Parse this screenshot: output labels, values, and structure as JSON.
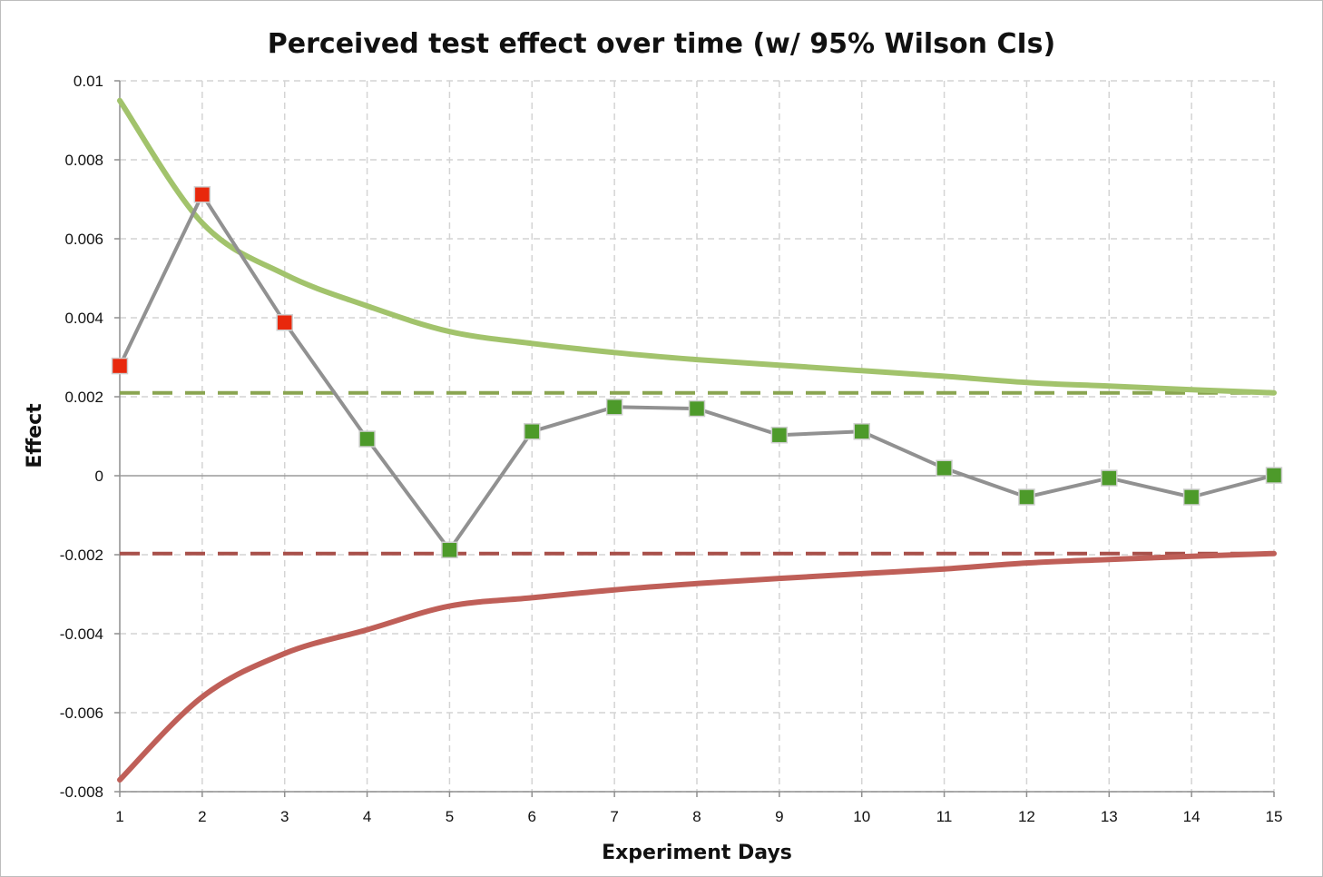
{
  "chart_data": {
    "type": "line",
    "title": "Perceived test effect over time (w/ 95% Wilson CIs)",
    "xlabel": "Experiment Days",
    "ylabel": "Effect",
    "x": [
      1,
      2,
      3,
      4,
      5,
      6,
      7,
      8,
      9,
      10,
      11,
      12,
      13,
      14,
      15
    ],
    "x_tick_labels": [
      "1",
      "2",
      "3",
      "4",
      "5",
      "6",
      "7",
      "8",
      "9",
      "10",
      "11",
      "12",
      "13",
      "14",
      "15"
    ],
    "y_tick_labels": [
      "0.01",
      "0.008",
      "0.006",
      "0.004",
      "0.002",
      "0",
      "-0.002",
      "-0.004",
      "-0.006",
      "-0.008"
    ],
    "y_ticks": [
      0.01,
      0.008,
      0.006,
      0.004,
      0.002,
      0,
      -0.002,
      -0.004,
      -0.006,
      -0.008
    ],
    "xlim": [
      1,
      15
    ],
    "ylim": [
      -0.008,
      0.01
    ],
    "grid": true,
    "legend": "none",
    "series": [
      {
        "role": "effect",
        "values": [
          0.00278,
          0.00712,
          0.00388,
          0.00093,
          -0.00188,
          0.00112,
          0.00174,
          0.0017,
          0.00103,
          0.00112,
          0.00019,
          -0.00054,
          -6e-05,
          -0.00054,
          1e-05
        ],
        "point_colors": [
          "#e8280c",
          "#e8280c",
          "#e8280c",
          "#4d9a2a",
          "#4d9a2a",
          "#4d9a2a",
          "#4d9a2a",
          "#4d9a2a",
          "#4d9a2a",
          "#4d9a2a",
          "#4d9a2a",
          "#4d9a2a",
          "#4d9a2a",
          "#4d9a2a",
          "#4d9a2a"
        ],
        "line_color": "#919191"
      },
      {
        "role": "upper-ci",
        "values": [
          0.0095,
          0.0064,
          0.0051,
          0.0043,
          0.00365,
          0.00335,
          0.00312,
          0.00294,
          0.0028,
          0.00266,
          0.00252,
          0.00236,
          0.00227,
          0.00218,
          0.0021
        ],
        "color": "#a2c36c"
      },
      {
        "role": "lower-ci",
        "values": [
          -0.0077,
          -0.0056,
          -0.0045,
          -0.0039,
          -0.0033,
          -0.00309,
          -0.00289,
          -0.00273,
          -0.0026,
          -0.00248,
          -0.00236,
          -0.00221,
          -0.00212,
          -0.00204,
          -0.00197
        ],
        "color": "#bf5f58"
      },
      {
        "role": "upper-threshold",
        "style": "dashed",
        "values": [
          0.0021,
          0.0021,
          0.0021,
          0.0021,
          0.0021,
          0.0021,
          0.0021,
          0.0021,
          0.0021,
          0.0021,
          0.0021,
          0.0021,
          0.0021,
          0.0021,
          0.0021
        ],
        "color": "#8aa551"
      },
      {
        "role": "lower-threshold",
        "style": "dashed",
        "values": [
          -0.00197,
          -0.00197,
          -0.00197,
          -0.00197,
          -0.00197,
          -0.00197,
          -0.00197,
          -0.00197,
          -0.00197,
          -0.00197,
          -0.00197,
          -0.00197,
          -0.00197,
          -0.00197,
          -0.00197
        ],
        "color": "#a8504a"
      }
    ]
  }
}
